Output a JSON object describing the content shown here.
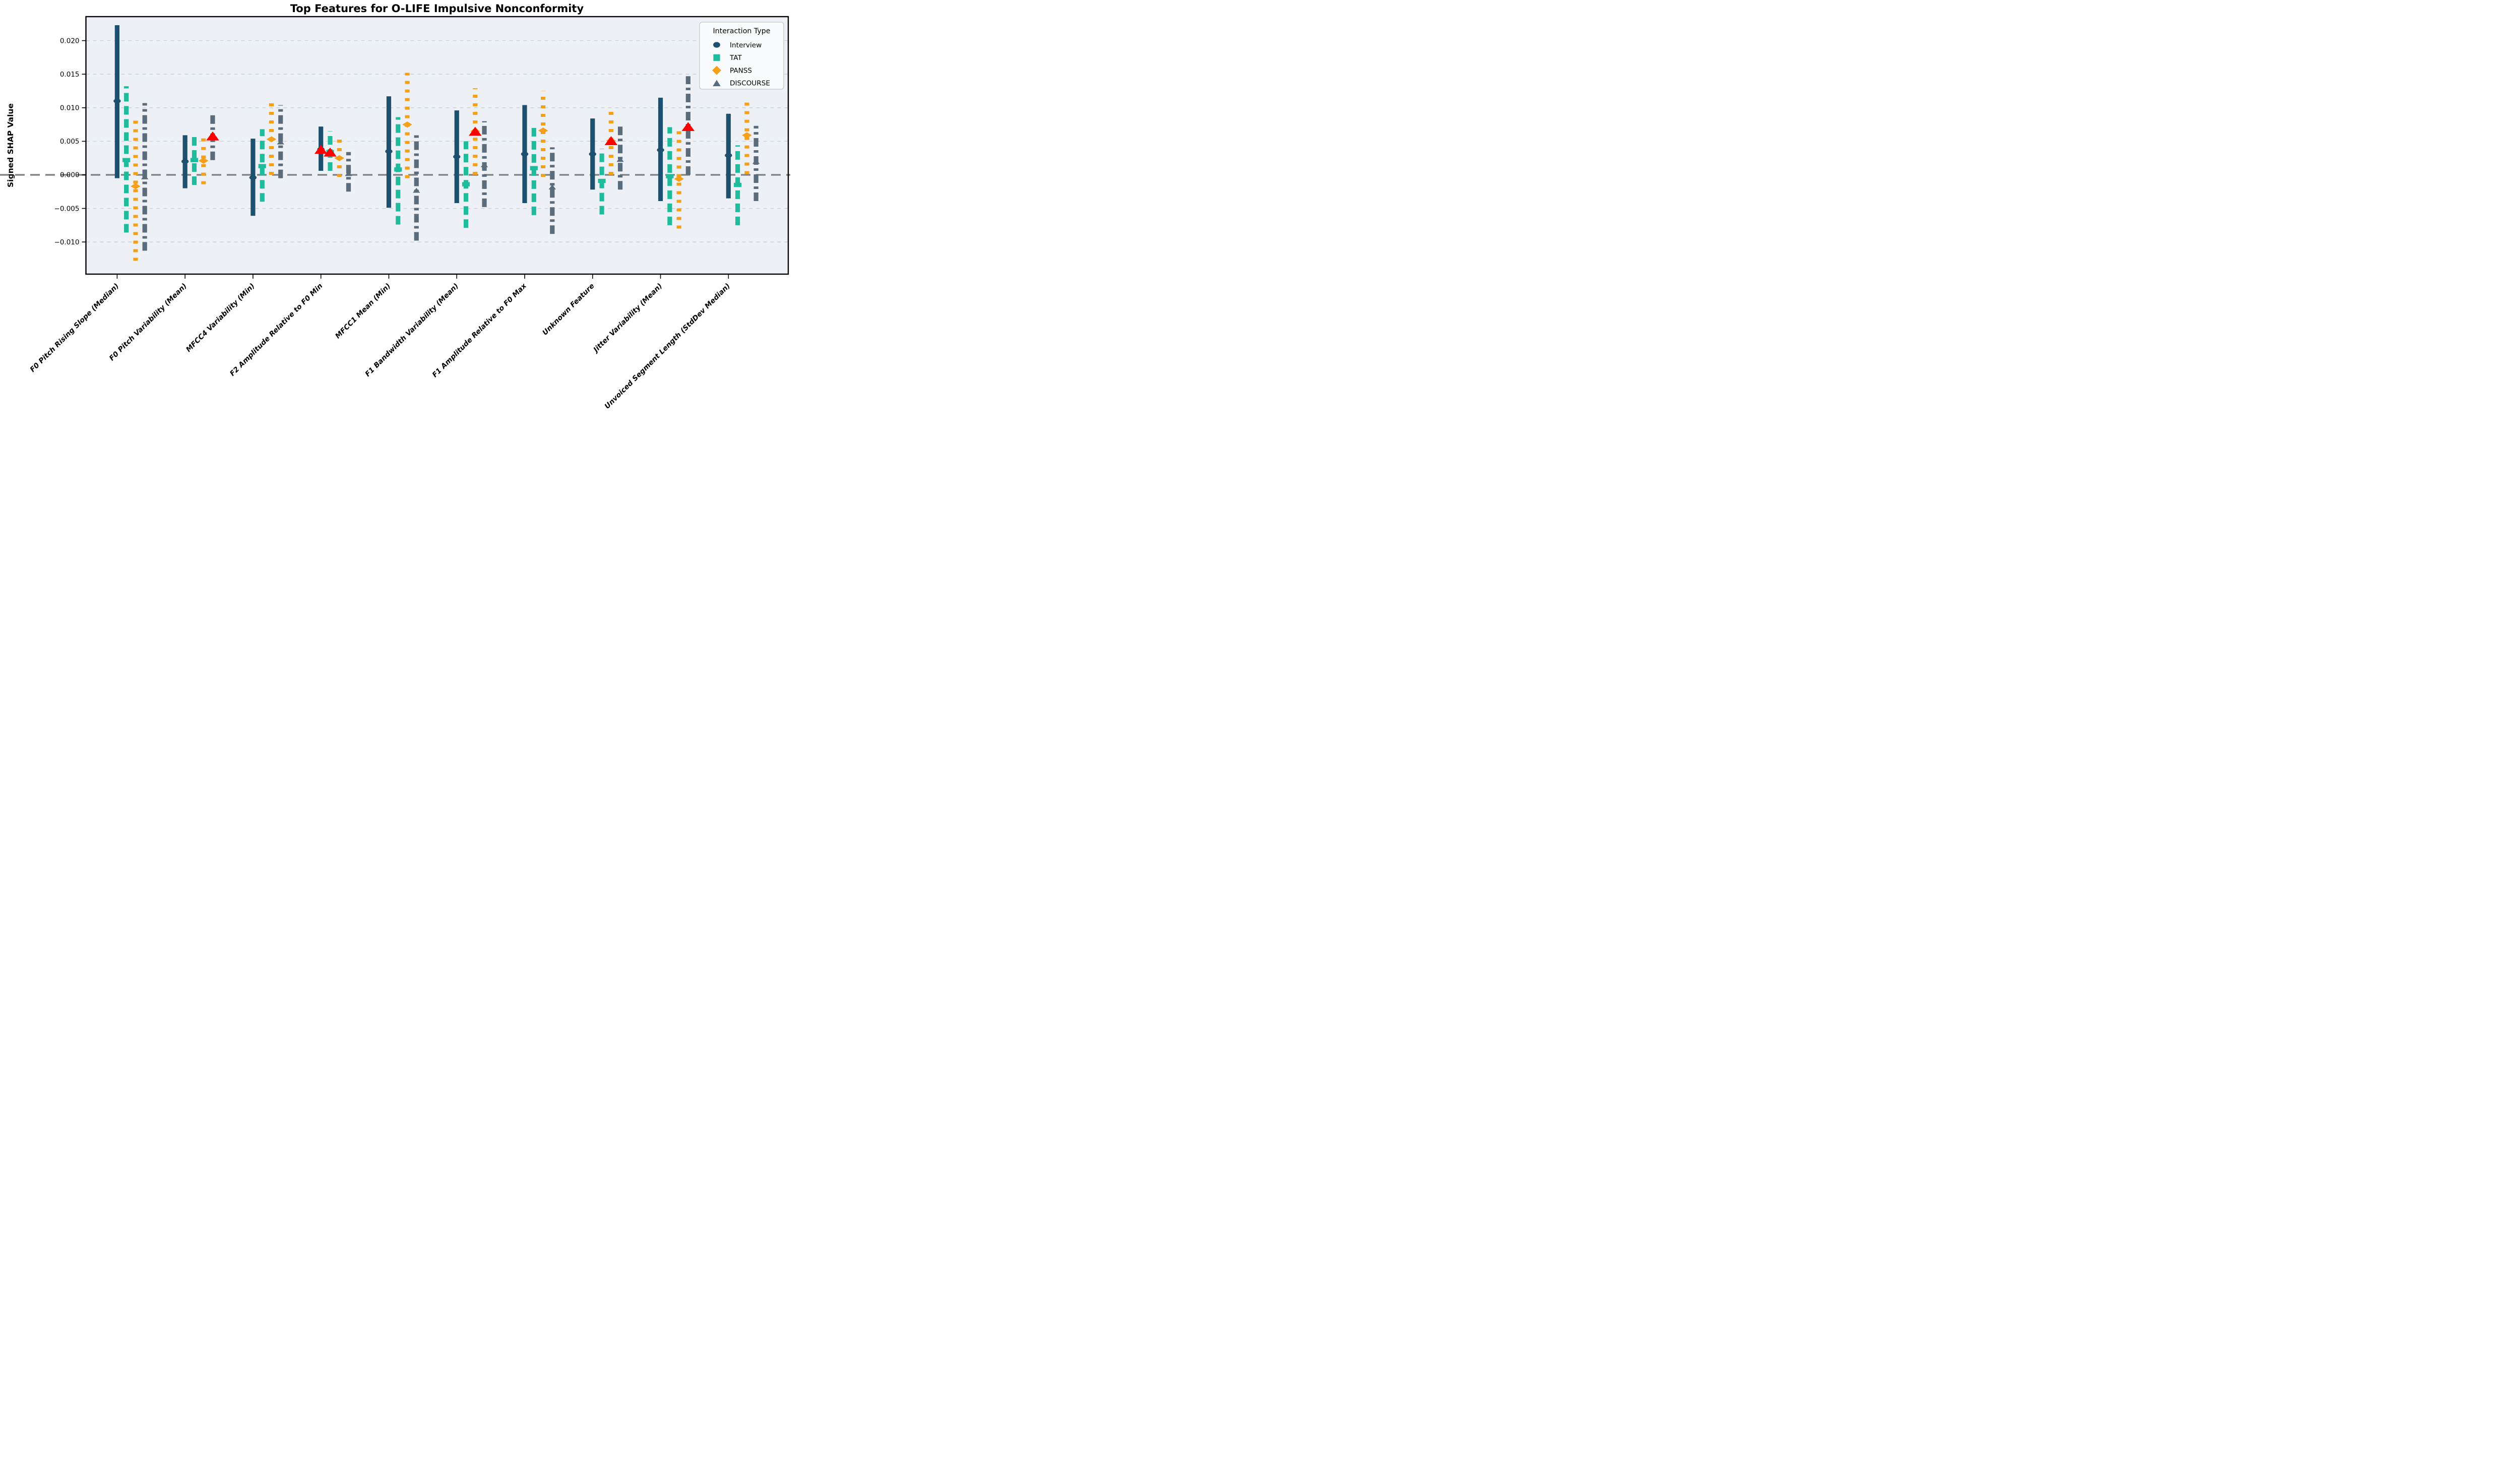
{
  "colors": {
    "figure_bg": "#ffffff",
    "plot_bg": "#edf1f5",
    "grid": "#c9ced3",
    "zero_line": "#7f7f7f",
    "spine": "#000000",
    "legend_bg": "#fafbfd",
    "legend_border": "#cccccc",
    "interview": "#1d506f",
    "tat": "#1ebc9c",
    "panss": "#f5a019",
    "discourse": "#5a6b7b",
    "significant": "#fe0000"
  },
  "legend": {
    "title": "Interaction Type",
    "items": [
      {
        "label": "Interview",
        "marker": "circle-icon",
        "color": "#1d506f"
      },
      {
        "label": "TAT",
        "marker": "square-icon",
        "color": "#1ebc9c"
      },
      {
        "label": "PANSS",
        "marker": "diamond-icon",
        "color": "#f5a019"
      },
      {
        "label": "DISCOURSE",
        "marker": "triangle-up-icon",
        "color": "#5a6b7b"
      }
    ]
  },
  "chart_data": {
    "type": "scatter",
    "subtype": "dodged-errorbar",
    "title": "Top Features for O-LIFE Impulsive Nonconformity",
    "ylabel": "Signed SHAP Value",
    "xlabel": "",
    "legend_title": "Interaction Type",
    "legend_position": "upper right",
    "grid": true,
    "zero_line": true,
    "ylim": [
      -0.0148,
      0.0236
    ],
    "yticks": [
      0.02,
      0.015,
      0.01,
      0.005,
      0.0,
      -0.005,
      -0.01
    ],
    "ytick_labels": [
      "0.020",
      "0.015",
      "0.010",
      "0.005",
      "0.000",
      "−0.005",
      "−0.010"
    ],
    "categories": [
      "F0 Pitch Rising Slope (Median)",
      "F0 Pitch Variability (Mean)",
      "MFCC4 Variability (Min)",
      "F2 Amplitude Relative to F0 Min",
      "MFCC1 Mean (Min)",
      "F1 Bandwidth Variability (Mean)",
      "F1 Amplitude Relative to F0 Max",
      "Unknown Feature",
      "Jitter Variability (Mean)",
      "Unvoiced Segment Length (StdDev Median)"
    ],
    "significant_marker": "triangle-up",
    "significant_color": "#fe0000",
    "series": [
      {
        "name": "Interview",
        "marker": "circle",
        "line_style": "solid",
        "color": "#1d506f",
        "points": [
          {
            "lo": -0.0005,
            "mean": 0.011,
            "hi": 0.0223,
            "sig": false
          },
          {
            "lo": -0.002,
            "mean": 0.002,
            "hi": 0.0059,
            "sig": false
          },
          {
            "lo": -0.0061,
            "mean": -0.0004,
            "hi": 0.0054,
            "sig": false
          },
          {
            "lo": 0.0006,
            "mean": 0.0038,
            "hi": 0.0072,
            "sig": true
          },
          {
            "lo": -0.0049,
            "mean": 0.0035,
            "hi": 0.0117,
            "sig": false
          },
          {
            "lo": -0.0042,
            "mean": 0.0027,
            "hi": 0.0096,
            "sig": false
          },
          {
            "lo": -0.0042,
            "mean": 0.0031,
            "hi": 0.0104,
            "sig": false
          },
          {
            "lo": -0.0022,
            "mean": 0.0031,
            "hi": 0.0084,
            "sig": false
          },
          {
            "lo": -0.0039,
            "mean": 0.0037,
            "hi": 0.0115,
            "sig": false
          },
          {
            "lo": -0.0035,
            "mean": 0.0029,
            "hi": 0.0091,
            "sig": false
          }
        ]
      },
      {
        "name": "TAT",
        "marker": "square",
        "line_style": "dashed",
        "color": "#1ebc9c",
        "points": [
          {
            "lo": -0.0086,
            "mean": 0.0022,
            "hi": 0.0132,
            "sig": false
          },
          {
            "lo": -0.0015,
            "mean": 0.0022,
            "hi": 0.0058,
            "sig": false
          },
          {
            "lo": -0.004,
            "mean": 0.0013,
            "hi": 0.0068,
            "sig": false
          },
          {
            "lo": 0.0006,
            "mean": 0.0034,
            "hi": 0.0065,
            "sig": true
          },
          {
            "lo": -0.0074,
            "mean": 0.0008,
            "hi": 0.0086,
            "sig": false
          },
          {
            "lo": -0.0079,
            "mean": -0.0014,
            "hi": 0.005,
            "sig": false
          },
          {
            "lo": -0.006,
            "mean": 0.001,
            "hi": 0.007,
            "sig": false
          },
          {
            "lo": -0.0059,
            "mean": -0.0009,
            "hi": 0.0039,
            "sig": false
          },
          {
            "lo": -0.0075,
            "mean": -0.0002,
            "hi": 0.0071,
            "sig": false
          },
          {
            "lo": -0.0075,
            "mean": -0.0015,
            "hi": 0.0044,
            "sig": false
          }
        ]
      },
      {
        "name": "PANSS",
        "marker": "diamond",
        "line_style": "dotted",
        "color": "#f5a019",
        "points": [
          {
            "lo": -0.0128,
            "mean": -0.0017,
            "hi": 0.0086,
            "sig": false
          },
          {
            "lo": -0.0014,
            "mean": 0.0021,
            "hi": 0.0058,
            "sig": false
          },
          {
            "lo": 0.0,
            "mean": 0.0053,
            "hi": 0.0109,
            "sig": false
          },
          {
            "lo": -0.0003,
            "mean": 0.0025,
            "hi": 0.0053,
            "sig": false
          },
          {
            "lo": -0.0005,
            "mean": 0.0075,
            "hi": 0.0152,
            "sig": false
          },
          {
            "lo": 0.0,
            "mean": 0.0065,
            "hi": 0.0129,
            "sig": true
          },
          {
            "lo": -0.0003,
            "mean": 0.0066,
            "hi": 0.0125,
            "sig": false
          },
          {
            "lo": 0.0,
            "mean": 0.0051,
            "hi": 0.0095,
            "sig": true
          },
          {
            "lo": -0.008,
            "mean": -0.0006,
            "hi": 0.0066,
            "sig": false
          },
          {
            "lo": 0.0001,
            "mean": 0.0059,
            "hi": 0.0109,
            "sig": false
          }
        ]
      },
      {
        "name": "DISCOURSE",
        "marker": "triangle-up",
        "line_style": "dashdot",
        "color": "#5a6b7b",
        "points": [
          {
            "lo": -0.0113,
            "mean": -0.0003,
            "hi": 0.0107,
            "sig": false
          },
          {
            "lo": 0.0022,
            "mean": 0.0058,
            "hi": 0.0094,
            "sig": true
          },
          {
            "lo": -0.0005,
            "mean": 0.0049,
            "hi": 0.0104,
            "sig": false
          },
          {
            "lo": -0.0025,
            "mean": 0.0002,
            "hi": 0.0034,
            "sig": false
          },
          {
            "lo": -0.0098,
            "mean": -0.0023,
            "hi": 0.006,
            "sig": false
          },
          {
            "lo": -0.0048,
            "mean": 0.0015,
            "hi": 0.008,
            "sig": false
          },
          {
            "lo": -0.0088,
            "mean": -0.0018,
            "hi": 0.0041,
            "sig": false
          },
          {
            "lo": -0.0022,
            "mean": 0.0023,
            "hi": 0.0072,
            "sig": false
          },
          {
            "lo": 0.0,
            "mean": 0.0072,
            "hi": 0.0147,
            "sig": true
          },
          {
            "lo": -0.0039,
            "mean": 0.002,
            "hi": 0.0073,
            "sig": false
          }
        ]
      }
    ]
  }
}
